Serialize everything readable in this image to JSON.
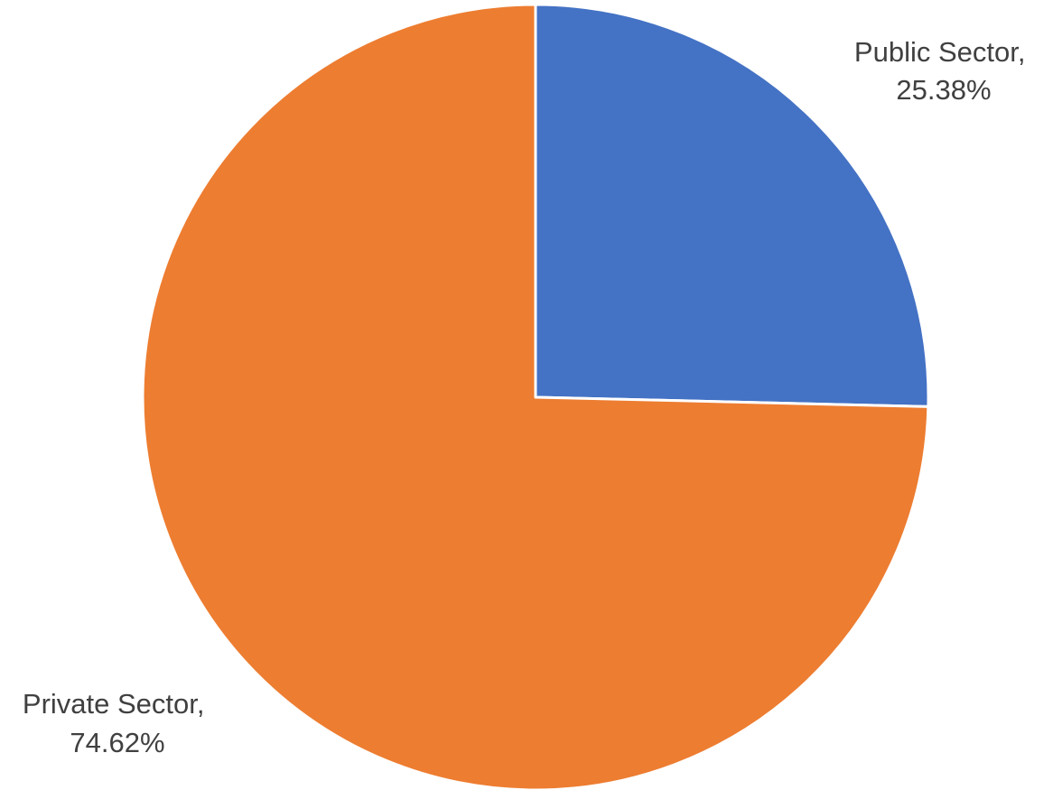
{
  "chart_data": {
    "type": "pie",
    "categories": [
      "Public Sector",
      "Private Sector"
    ],
    "values": [
      25.38,
      74.62
    ],
    "unit": "%",
    "colors": [
      "#4472C4",
      "#ED7D31"
    ],
    "data_labels": [
      {
        "line1": "Public Sector,",
        "line2": "25.38%"
      },
      {
        "line1": "Private Sector,",
        "line2": "74.62%"
      }
    ],
    "start_angle_deg": 0,
    "direction": "clockwise",
    "legend": "none"
  }
}
